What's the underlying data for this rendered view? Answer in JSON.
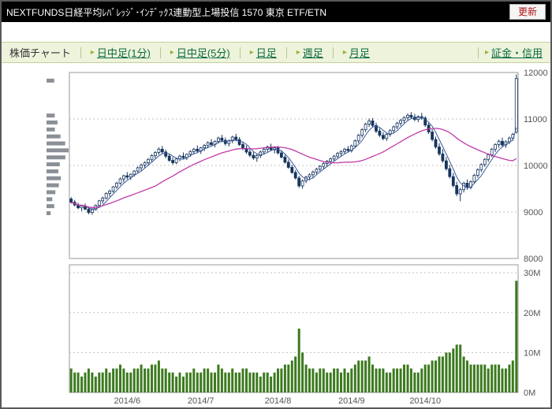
{
  "header": {
    "title": "NEXTFUNDS日経平均ﾚﾊﾞﾚｯｼﾞ･ｲﾝﾃﾞｯｸｽ連動型上場投信 1570 東京 ETF/ETN",
    "refresh_label": "更新"
  },
  "nav": {
    "section_label": "株価チャート",
    "arrow": "▸",
    "tabs": [
      {
        "id": "intraday-1min",
        "label": "日中足(1分)"
      },
      {
        "id": "intraday-5min",
        "label": "日中足(5分)"
      },
      {
        "id": "daily",
        "label": "日足"
      },
      {
        "id": "weekly",
        "label": "週足"
      },
      {
        "id": "monthly",
        "label": "月足"
      }
    ],
    "right_link": "証金・信用"
  },
  "chart_data": {
    "type": "candlestick",
    "title": "株価チャート 日足 1570",
    "price_axis": {
      "min": 8000,
      "max": 12000,
      "ticks": [
        12000,
        11000,
        10000,
        9000,
        8000
      ]
    },
    "volume_axis": {
      "min": 0,
      "max": 32,
      "ticks": [
        30,
        20,
        10,
        0
      ],
      "unit": "M"
    },
    "profile_bin": 150,
    "ma_short_period": 5,
    "ma_long_period": 25,
    "x_labels": [
      {
        "label": "2014/6",
        "index": 16
      },
      {
        "label": "2014/7",
        "index": 37
      },
      {
        "label": "2014/8",
        "index": 59
      },
      {
        "label": "2014/9",
        "index": 80
      },
      {
        "label": "2014/10",
        "index": 101
      }
    ],
    "colors": {
      "candle": "#16355e",
      "volume": "#3c7a1f",
      "ma_short": "#3a5a9a",
      "ma_long": "#c03aa8",
      "profile": "#8b9097",
      "grid": "#c0c0c0",
      "pane_border": "#9a9a9a"
    },
    "candles": [
      [
        9280,
        9320,
        9180,
        9210,
        6
      ],
      [
        9210,
        9260,
        9120,
        9150,
        5
      ],
      [
        9150,
        9200,
        9060,
        9090,
        5
      ],
      [
        9090,
        9160,
        9020,
        9130,
        4
      ],
      [
        9130,
        9180,
        9040,
        9060,
        5
      ],
      [
        9060,
        9100,
        8950,
        8990,
        6
      ],
      [
        8990,
        9080,
        8940,
        9050,
        5
      ],
      [
        9050,
        9160,
        9030,
        9140,
        4
      ],
      [
        9140,
        9260,
        9110,
        9240,
        5
      ],
      [
        9240,
        9330,
        9180,
        9300,
        5
      ],
      [
        9300,
        9420,
        9270,
        9400,
        6
      ],
      [
        9400,
        9480,
        9330,
        9450,
        5
      ],
      [
        9450,
        9560,
        9410,
        9540,
        6
      ],
      [
        9540,
        9650,
        9500,
        9620,
        6
      ],
      [
        9620,
        9740,
        9580,
        9710,
        7
      ],
      [
        9710,
        9800,
        9640,
        9780,
        6
      ],
      [
        9780,
        9860,
        9700,
        9750,
        5
      ],
      [
        9750,
        9830,
        9690,
        9810,
        5
      ],
      [
        9810,
        9900,
        9760,
        9880,
        6
      ],
      [
        9880,
        9980,
        9840,
        9950,
        6
      ],
      [
        9950,
        10040,
        9890,
        10010,
        7
      ],
      [
        10010,
        10090,
        9950,
        10060,
        6
      ],
      [
        10060,
        10160,
        10010,
        10130,
        6
      ],
      [
        10130,
        10240,
        10080,
        10210,
        7
      ],
      [
        10210,
        10310,
        10150,
        10280,
        7
      ],
      [
        10280,
        10390,
        10230,
        10350,
        8
      ],
      [
        10350,
        10420,
        10250,
        10290,
        6
      ],
      [
        10290,
        10340,
        10160,
        10200,
        6
      ],
      [
        10200,
        10260,
        10080,
        10110,
        5
      ],
      [
        10110,
        10180,
        10020,
        10060,
        5
      ],
      [
        10060,
        10160,
        10030,
        10140,
        4
      ],
      [
        10140,
        10230,
        10090,
        10200,
        5
      ],
      [
        10200,
        10280,
        10130,
        10170,
        4
      ],
      [
        10170,
        10260,
        10120,
        10240,
        5
      ],
      [
        10240,
        10330,
        10190,
        10300,
        5
      ],
      [
        10300,
        10380,
        10240,
        10350,
        6
      ],
      [
        10350,
        10430,
        10280,
        10310,
        5
      ],
      [
        10310,
        10400,
        10250,
        10380,
        5
      ],
      [
        10380,
        10460,
        10310,
        10430,
        6
      ],
      [
        10430,
        10520,
        10370,
        10490,
        6
      ],
      [
        10490,
        10570,
        10420,
        10450,
        5
      ],
      [
        10450,
        10540,
        10390,
        10520,
        5
      ],
      [
        10520,
        10620,
        10470,
        10590,
        7
      ],
      [
        10590,
        10660,
        10500,
        10540,
        6
      ],
      [
        10540,
        10600,
        10430,
        10470,
        5
      ],
      [
        10470,
        10560,
        10410,
        10530,
        5
      ],
      [
        10530,
        10640,
        10480,
        10610,
        6
      ],
      [
        10610,
        10680,
        10520,
        10560,
        5
      ],
      [
        10560,
        10610,
        10420,
        10450,
        5
      ],
      [
        10450,
        10510,
        10330,
        10370,
        6
      ],
      [
        10370,
        10430,
        10250,
        10290,
        6
      ],
      [
        10290,
        10360,
        10180,
        10220,
        5
      ],
      [
        10220,
        10300,
        10120,
        10160,
        5
      ],
      [
        10160,
        10250,
        10080,
        10210,
        5
      ],
      [
        10210,
        10320,
        10160,
        10290,
        4
      ],
      [
        10290,
        10380,
        10230,
        10350,
        5
      ],
      [
        10350,
        10430,
        10280,
        10400,
        5
      ],
      [
        10400,
        10470,
        10310,
        10340,
        4
      ],
      [
        10340,
        10410,
        10260,
        10380,
        5
      ],
      [
        10380,
        10420,
        10240,
        10270,
        6
      ],
      [
        10270,
        10330,
        10150,
        10180,
        6
      ],
      [
        10180,
        10230,
        10040,
        10070,
        7
      ],
      [
        10070,
        10130,
        9930,
        9960,
        7
      ],
      [
        9960,
        10010,
        9820,
        9850,
        8
      ],
      [
        9850,
        9900,
        9700,
        9730,
        9
      ],
      [
        9730,
        9780,
        9520,
        9560,
        16
      ],
      [
        9560,
        9700,
        9500,
        9670,
        10
      ],
      [
        9670,
        9780,
        9620,
        9750,
        7
      ],
      [
        9750,
        9830,
        9680,
        9800,
        6
      ],
      [
        9800,
        9890,
        9740,
        9860,
        6
      ],
      [
        9860,
        9950,
        9810,
        9920,
        5
      ],
      [
        9920,
        10010,
        9870,
        9980,
        6
      ],
      [
        9980,
        10070,
        9930,
        10040,
        6
      ],
      [
        10040,
        10120,
        9980,
        10090,
        5
      ],
      [
        10090,
        10170,
        10030,
        10140,
        5
      ],
      [
        10140,
        10230,
        10090,
        10200,
        6
      ],
      [
        10200,
        10290,
        10150,
        10260,
        6
      ],
      [
        10260,
        10330,
        10190,
        10300,
        5
      ],
      [
        10300,
        10380,
        10240,
        10350,
        6
      ],
      [
        10350,
        10420,
        10280,
        10320,
        5
      ],
      [
        10320,
        10450,
        10280,
        10420,
        6
      ],
      [
        10420,
        10560,
        10380,
        10530,
        7
      ],
      [
        10530,
        10680,
        10480,
        10650,
        8
      ],
      [
        10650,
        10800,
        10600,
        10770,
        8
      ],
      [
        10770,
        10920,
        10720,
        10890,
        8
      ],
      [
        10890,
        11010,
        10830,
        10960,
        9
      ],
      [
        10960,
        11020,
        10820,
        10860,
        7
      ],
      [
        10860,
        10920,
        10700,
        10740,
        6
      ],
      [
        10740,
        10800,
        10610,
        10650,
        6
      ],
      [
        10650,
        10720,
        10540,
        10580,
        6
      ],
      [
        10580,
        10700,
        10530,
        10670,
        5
      ],
      [
        10670,
        10780,
        10620,
        10750,
        5
      ],
      [
        10750,
        10860,
        10700,
        10830,
        6
      ],
      [
        10830,
        10940,
        10780,
        10910,
        6
      ],
      [
        10910,
        11000,
        10850,
        10970,
        6
      ],
      [
        10970,
        11060,
        10910,
        11030,
        7
      ],
      [
        11030,
        11120,
        10970,
        11080,
        7
      ],
      [
        11080,
        11150,
        11000,
        11040,
        6
      ],
      [
        11040,
        11110,
        10950,
        10990,
        5
      ],
      [
        10990,
        11080,
        10930,
        11050,
        5
      ],
      [
        11050,
        11130,
        10980,
        11020,
        6
      ],
      [
        11020,
        11060,
        10830,
        10870,
        7
      ],
      [
        10870,
        10920,
        10680,
        10720,
        7
      ],
      [
        10720,
        10780,
        10520,
        10560,
        8
      ],
      [
        10560,
        10620,
        10360,
        10400,
        8
      ],
      [
        10400,
        10480,
        10210,
        10250,
        9
      ],
      [
        10250,
        10350,
        10060,
        10100,
        9
      ],
      [
        10100,
        10180,
        9890,
        9930,
        10
      ],
      [
        9930,
        10010,
        9720,
        9760,
        10
      ],
      [
        9760,
        9840,
        9530,
        9570,
        11
      ],
      [
        9570,
        9650,
        9340,
        9390,
        12
      ],
      [
        9390,
        9520,
        9230,
        9480,
        12
      ],
      [
        9480,
        9650,
        9420,
        9620,
        9
      ],
      [
        9620,
        9700,
        9480,
        9530,
        8
      ],
      [
        9530,
        9680,
        9490,
        9650,
        7
      ],
      [
        9650,
        9820,
        9610,
        9790,
        7
      ],
      [
        9790,
        9940,
        9740,
        9910,
        7
      ],
      [
        9910,
        10050,
        9860,
        10020,
        7
      ],
      [
        10020,
        10160,
        9970,
        10130,
        7
      ],
      [
        10130,
        10260,
        10080,
        10230,
        6
      ],
      [
        10230,
        10380,
        10180,
        10350,
        7
      ],
      [
        10350,
        10480,
        10290,
        10450,
        7
      ],
      [
        10450,
        10560,
        10380,
        10520,
        7
      ],
      [
        10520,
        10600,
        10400,
        10440,
        6
      ],
      [
        10440,
        10540,
        10380,
        10510,
        6
      ],
      [
        10510,
        10620,
        10460,
        10590,
        7
      ],
      [
        10590,
        10700,
        10530,
        10670,
        8
      ],
      [
        10720,
        11960,
        10690,
        11870,
        28
      ]
    ]
  }
}
